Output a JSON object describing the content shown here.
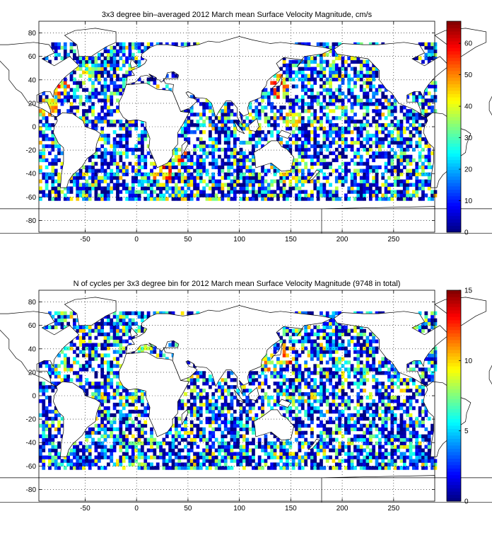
{
  "chart_data": [
    {
      "type": "heatmap",
      "title": "3x3 degree bin–averaged 2012 March mean Surface Velocity Magnitude, cm/s",
      "xlabel": "",
      "ylabel": "",
      "xlim": [
        -95,
        290
      ],
      "ylim": [
        -90,
        90
      ],
      "bin_size_deg": 3,
      "grid": "dotted",
      "x_ticks": [
        "-50",
        "0",
        "50",
        "100",
        "150",
        "200",
        "250"
      ],
      "y_ticks": [
        "80",
        "60",
        "40",
        "20",
        "0",
        "-20",
        "-40",
        "-60",
        "-80"
      ],
      "colorbar": {
        "min": 0,
        "max": 67,
        "ticks": [
          "0",
          "10",
          "20",
          "30",
          "40",
          "50",
          "60"
        ],
        "colormap": "jet"
      },
      "hotspots": [
        {
          "lon": -75,
          "lat": 35,
          "value": 58
        },
        {
          "lon": -85,
          "lat": 15,
          "value": 55
        },
        {
          "lon": 40,
          "lat": -20,
          "value": 60
        },
        {
          "lon": 25,
          "lat": -40,
          "value": 62
        },
        {
          "lon": 140,
          "lat": 35,
          "value": 60
        },
        {
          "lon": 150,
          "lat": 5,
          "value": 50
        },
        {
          "lon": 150,
          "lat": -40,
          "value": 48
        },
        {
          "lon": -50,
          "lat": 45,
          "value": 45
        }
      ]
    },
    {
      "type": "heatmap",
      "title": "N of cycles per 3x3 degree bin for 2012 March mean Surface Velocity Magnitude (9748 in total)",
      "xlabel": "",
      "ylabel": "",
      "xlim": [
        -95,
        290
      ],
      "ylim": [
        -90,
        90
      ],
      "bin_size_deg": 3,
      "grid": "dotted",
      "total_cycles": 9748,
      "x_ticks": [
        "-50",
        "0",
        "50",
        "100",
        "150",
        "200",
        "250"
      ],
      "y_ticks": [
        "80",
        "60",
        "40",
        "20",
        "0",
        "-20",
        "-40",
        "-60",
        "-80"
      ],
      "colorbar": {
        "min": 0,
        "max": 15,
        "ticks": [
          "0",
          "5",
          "10",
          "15"
        ],
        "colormap": "jet"
      },
      "hotspots": [
        {
          "lon": 145,
          "lat": 35,
          "value": 14
        },
        {
          "lon": 130,
          "lat": 30,
          "value": 12
        },
        {
          "lon": 30,
          "lat": 20,
          "value": 11
        },
        {
          "lon": -75,
          "lat": 35,
          "value": 9
        }
      ]
    }
  ]
}
